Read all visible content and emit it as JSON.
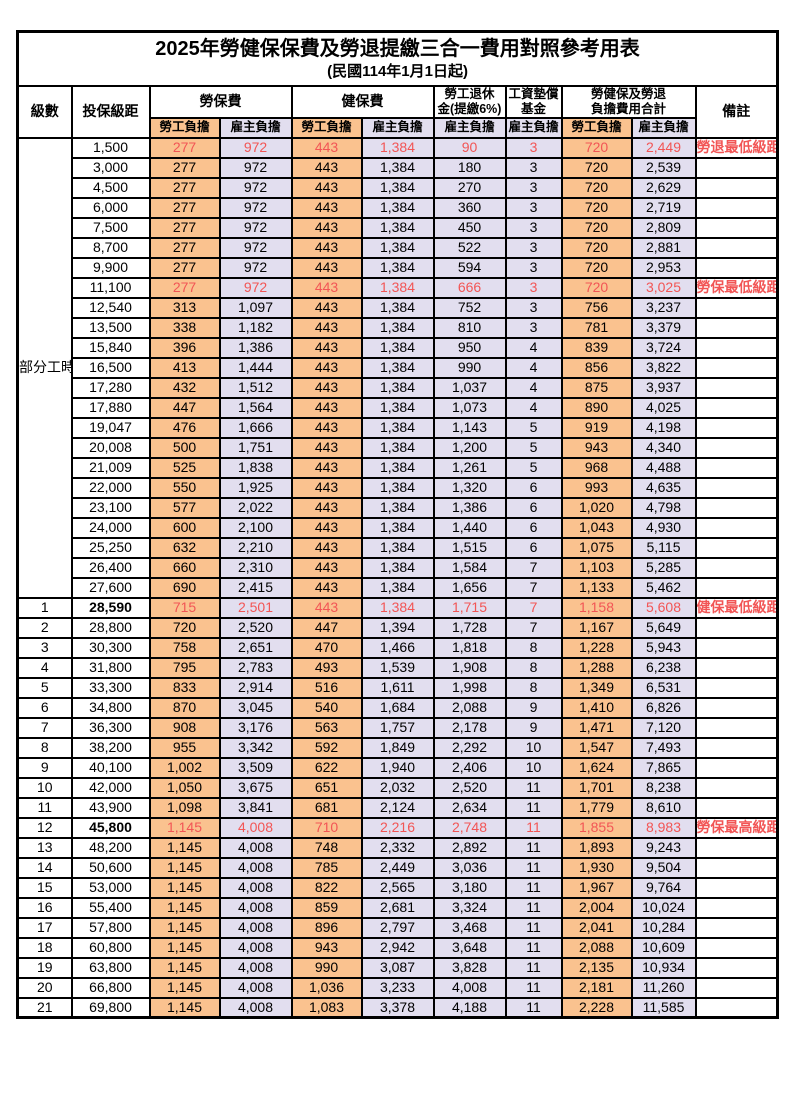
{
  "title": "2025年勞健保保費及勞退提繳三合一費用對照參考用表",
  "subtitle": "(民國114年1月1日起)",
  "header": {
    "level": "級數",
    "salary_bracket": "投保級距",
    "labor_insurance": "勞保費",
    "health_insurance": "健保費",
    "pension_line1": "勞工退休",
    "pension_line2": "金(提繳6%)",
    "wage_fund_line1": "工資墊償",
    "wage_fund_line2": "基金",
    "total_line1": "勞健保及勞退",
    "total_line2": "負擔費用合計",
    "note": "備註",
    "sub": [
      "勞工負擔",
      "雇主負擔",
      "勞工負擔",
      "雇主負擔",
      "雇主負擔",
      "雇主負擔",
      "勞工負擔",
      "雇主負擔"
    ]
  },
  "part_time_label": "部分工時",
  "part_time_rowspan": 23,
  "colors": {
    "employee_column_fill": "#FAC28F",
    "employer_column_fill": "#E2DEEF",
    "highlight_text": "#F25555",
    "border": "#000000"
  },
  "rows": [
    {
      "level": "",
      "salary": "1,500",
      "values": [
        "277",
        "972",
        "443",
        "1,384",
        "90",
        "3",
        "720",
        "2,449"
      ],
      "note": "勞退最低級距",
      "highlight": true,
      "bold_salary": false
    },
    {
      "level": "",
      "salary": "3,000",
      "values": [
        "277",
        "972",
        "443",
        "1,384",
        "180",
        "3",
        "720",
        "2,539"
      ],
      "note": "",
      "highlight": false,
      "bold_salary": false
    },
    {
      "level": "",
      "salary": "4,500",
      "values": [
        "277",
        "972",
        "443",
        "1,384",
        "270",
        "3",
        "720",
        "2,629"
      ],
      "note": "",
      "highlight": false,
      "bold_salary": false
    },
    {
      "level": "",
      "salary": "6,000",
      "values": [
        "277",
        "972",
        "443",
        "1,384",
        "360",
        "3",
        "720",
        "2,719"
      ],
      "note": "",
      "highlight": false,
      "bold_salary": false
    },
    {
      "level": "",
      "salary": "7,500",
      "values": [
        "277",
        "972",
        "443",
        "1,384",
        "450",
        "3",
        "720",
        "2,809"
      ],
      "note": "",
      "highlight": false,
      "bold_salary": false
    },
    {
      "level": "",
      "salary": "8,700",
      "values": [
        "277",
        "972",
        "443",
        "1,384",
        "522",
        "3",
        "720",
        "2,881"
      ],
      "note": "",
      "highlight": false,
      "bold_salary": false
    },
    {
      "level": "",
      "salary": "9,900",
      "values": [
        "277",
        "972",
        "443",
        "1,384",
        "594",
        "3",
        "720",
        "2,953"
      ],
      "note": "",
      "highlight": false,
      "bold_salary": false
    },
    {
      "level": "",
      "salary": "11,100",
      "values": [
        "277",
        "972",
        "443",
        "1,384",
        "666",
        "3",
        "720",
        "3,025"
      ],
      "note": "勞保最低級距",
      "highlight": true,
      "bold_salary": false
    },
    {
      "level": "",
      "salary": "12,540",
      "values": [
        "313",
        "1,097",
        "443",
        "1,384",
        "752",
        "3",
        "756",
        "3,237"
      ],
      "note": "",
      "highlight": false,
      "bold_salary": false
    },
    {
      "level": "",
      "salary": "13,500",
      "values": [
        "338",
        "1,182",
        "443",
        "1,384",
        "810",
        "3",
        "781",
        "3,379"
      ],
      "note": "",
      "highlight": false,
      "bold_salary": false
    },
    {
      "level": "",
      "salary": "15,840",
      "values": [
        "396",
        "1,386",
        "443",
        "1,384",
        "950",
        "4",
        "839",
        "3,724"
      ],
      "note": "",
      "highlight": false,
      "bold_salary": false
    },
    {
      "level": "",
      "salary": "16,500",
      "values": [
        "413",
        "1,444",
        "443",
        "1,384",
        "990",
        "4",
        "856",
        "3,822"
      ],
      "note": "",
      "highlight": false,
      "bold_salary": false
    },
    {
      "level": "",
      "salary": "17,280",
      "values": [
        "432",
        "1,512",
        "443",
        "1,384",
        "1,037",
        "4",
        "875",
        "3,937"
      ],
      "note": "",
      "highlight": false,
      "bold_salary": false
    },
    {
      "level": "",
      "salary": "17,880",
      "values": [
        "447",
        "1,564",
        "443",
        "1,384",
        "1,073",
        "4",
        "890",
        "4,025"
      ],
      "note": "",
      "highlight": false,
      "bold_salary": false
    },
    {
      "level": "",
      "salary": "19,047",
      "values": [
        "476",
        "1,666",
        "443",
        "1,384",
        "1,143",
        "5",
        "919",
        "4,198"
      ],
      "note": "",
      "highlight": false,
      "bold_salary": false
    },
    {
      "level": "",
      "salary": "20,008",
      "values": [
        "500",
        "1,751",
        "443",
        "1,384",
        "1,200",
        "5",
        "943",
        "4,340"
      ],
      "note": "",
      "highlight": false,
      "bold_salary": false
    },
    {
      "level": "",
      "salary": "21,009",
      "values": [
        "525",
        "1,838",
        "443",
        "1,384",
        "1,261",
        "5",
        "968",
        "4,488"
      ],
      "note": "",
      "highlight": false,
      "bold_salary": false
    },
    {
      "level": "",
      "salary": "22,000",
      "values": [
        "550",
        "1,925",
        "443",
        "1,384",
        "1,320",
        "6",
        "993",
        "4,635"
      ],
      "note": "",
      "highlight": false,
      "bold_salary": false
    },
    {
      "level": "",
      "salary": "23,100",
      "values": [
        "577",
        "2,022",
        "443",
        "1,384",
        "1,386",
        "6",
        "1,020",
        "4,798"
      ],
      "note": "",
      "highlight": false,
      "bold_salary": false
    },
    {
      "level": "",
      "salary": "24,000",
      "values": [
        "600",
        "2,100",
        "443",
        "1,384",
        "1,440",
        "6",
        "1,043",
        "4,930"
      ],
      "note": "",
      "highlight": false,
      "bold_salary": false
    },
    {
      "level": "",
      "salary": "25,250",
      "values": [
        "632",
        "2,210",
        "443",
        "1,384",
        "1,515",
        "6",
        "1,075",
        "5,115"
      ],
      "note": "",
      "highlight": false,
      "bold_salary": false
    },
    {
      "level": "",
      "salary": "26,400",
      "values": [
        "660",
        "2,310",
        "443",
        "1,384",
        "1,584",
        "7",
        "1,103",
        "5,285"
      ],
      "note": "",
      "highlight": false,
      "bold_salary": false
    },
    {
      "level": "",
      "salary": "27,600",
      "values": [
        "690",
        "2,415",
        "443",
        "1,384",
        "1,656",
        "7",
        "1,133",
        "5,462"
      ],
      "note": "",
      "highlight": false,
      "bold_salary": false
    },
    {
      "level": "1",
      "salary": "28,590",
      "values": [
        "715",
        "2,501",
        "443",
        "1,384",
        "1,715",
        "7",
        "1,158",
        "5,608"
      ],
      "note": "健保最低級距",
      "highlight": true,
      "bold_salary": true
    },
    {
      "level": "2",
      "salary": "28,800",
      "values": [
        "720",
        "2,520",
        "447",
        "1,394",
        "1,728",
        "7",
        "1,167",
        "5,649"
      ],
      "note": "",
      "highlight": false,
      "bold_salary": false
    },
    {
      "level": "3",
      "salary": "30,300",
      "values": [
        "758",
        "2,651",
        "470",
        "1,466",
        "1,818",
        "8",
        "1,228",
        "5,943"
      ],
      "note": "",
      "highlight": false,
      "bold_salary": false
    },
    {
      "level": "4",
      "salary": "31,800",
      "values": [
        "795",
        "2,783",
        "493",
        "1,539",
        "1,908",
        "8",
        "1,288",
        "6,238"
      ],
      "note": "",
      "highlight": false,
      "bold_salary": false
    },
    {
      "level": "5",
      "salary": "33,300",
      "values": [
        "833",
        "2,914",
        "516",
        "1,611",
        "1,998",
        "8",
        "1,349",
        "6,531"
      ],
      "note": "",
      "highlight": false,
      "bold_salary": false
    },
    {
      "level": "6",
      "salary": "34,800",
      "values": [
        "870",
        "3,045",
        "540",
        "1,684",
        "2,088",
        "9",
        "1,410",
        "6,826"
      ],
      "note": "",
      "highlight": false,
      "bold_salary": false
    },
    {
      "level": "7",
      "salary": "36,300",
      "values": [
        "908",
        "3,176",
        "563",
        "1,757",
        "2,178",
        "9",
        "1,471",
        "7,120"
      ],
      "note": "",
      "highlight": false,
      "bold_salary": false
    },
    {
      "level": "8",
      "salary": "38,200",
      "values": [
        "955",
        "3,342",
        "592",
        "1,849",
        "2,292",
        "10",
        "1,547",
        "7,493"
      ],
      "note": "",
      "highlight": false,
      "bold_salary": false
    },
    {
      "level": "9",
      "salary": "40,100",
      "values": [
        "1,002",
        "3,509",
        "622",
        "1,940",
        "2,406",
        "10",
        "1,624",
        "7,865"
      ],
      "note": "",
      "highlight": false,
      "bold_salary": false
    },
    {
      "level": "10",
      "salary": "42,000",
      "values": [
        "1,050",
        "3,675",
        "651",
        "2,032",
        "2,520",
        "11",
        "1,701",
        "8,238"
      ],
      "note": "",
      "highlight": false,
      "bold_salary": false
    },
    {
      "level": "11",
      "salary": "43,900",
      "values": [
        "1,098",
        "3,841",
        "681",
        "2,124",
        "2,634",
        "11",
        "1,779",
        "8,610"
      ],
      "note": "",
      "highlight": false,
      "bold_salary": false
    },
    {
      "level": "12",
      "salary": "45,800",
      "values": [
        "1,145",
        "4,008",
        "710",
        "2,216",
        "2,748",
        "11",
        "1,855",
        "8,983"
      ],
      "note": "勞保最高級距",
      "highlight": true,
      "bold_salary": true
    },
    {
      "level": "13",
      "salary": "48,200",
      "values": [
        "1,145",
        "4,008",
        "748",
        "2,332",
        "2,892",
        "11",
        "1,893",
        "9,243"
      ],
      "note": "",
      "highlight": false,
      "bold_salary": false
    },
    {
      "level": "14",
      "salary": "50,600",
      "values": [
        "1,145",
        "4,008",
        "785",
        "2,449",
        "3,036",
        "11",
        "1,930",
        "9,504"
      ],
      "note": "",
      "highlight": false,
      "bold_salary": false
    },
    {
      "level": "15",
      "salary": "53,000",
      "values": [
        "1,145",
        "4,008",
        "822",
        "2,565",
        "3,180",
        "11",
        "1,967",
        "9,764"
      ],
      "note": "",
      "highlight": false,
      "bold_salary": false
    },
    {
      "level": "16",
      "salary": "55,400",
      "values": [
        "1,145",
        "4,008",
        "859",
        "2,681",
        "3,324",
        "11",
        "2,004",
        "10,024"
      ],
      "note": "",
      "highlight": false,
      "bold_salary": false
    },
    {
      "level": "17",
      "salary": "57,800",
      "values": [
        "1,145",
        "4,008",
        "896",
        "2,797",
        "3,468",
        "11",
        "2,041",
        "10,284"
      ],
      "note": "",
      "highlight": false,
      "bold_salary": false
    },
    {
      "level": "18",
      "salary": "60,800",
      "values": [
        "1,145",
        "4,008",
        "943",
        "2,942",
        "3,648",
        "11",
        "2,088",
        "10,609"
      ],
      "note": "",
      "highlight": false,
      "bold_salary": false
    },
    {
      "level": "19",
      "salary": "63,800",
      "values": [
        "1,145",
        "4,008",
        "990",
        "3,087",
        "3,828",
        "11",
        "2,135",
        "10,934"
      ],
      "note": "",
      "highlight": false,
      "bold_salary": false
    },
    {
      "level": "20",
      "salary": "66,800",
      "values": [
        "1,145",
        "4,008",
        "1,036",
        "3,233",
        "4,008",
        "11",
        "2,181",
        "11,260"
      ],
      "note": "",
      "highlight": false,
      "bold_salary": false
    },
    {
      "level": "21",
      "salary": "69,800",
      "values": [
        "1,145",
        "4,008",
        "1,083",
        "3,378",
        "4,188",
        "11",
        "2,228",
        "11,585"
      ],
      "note": "",
      "highlight": false,
      "bold_salary": false
    }
  ]
}
